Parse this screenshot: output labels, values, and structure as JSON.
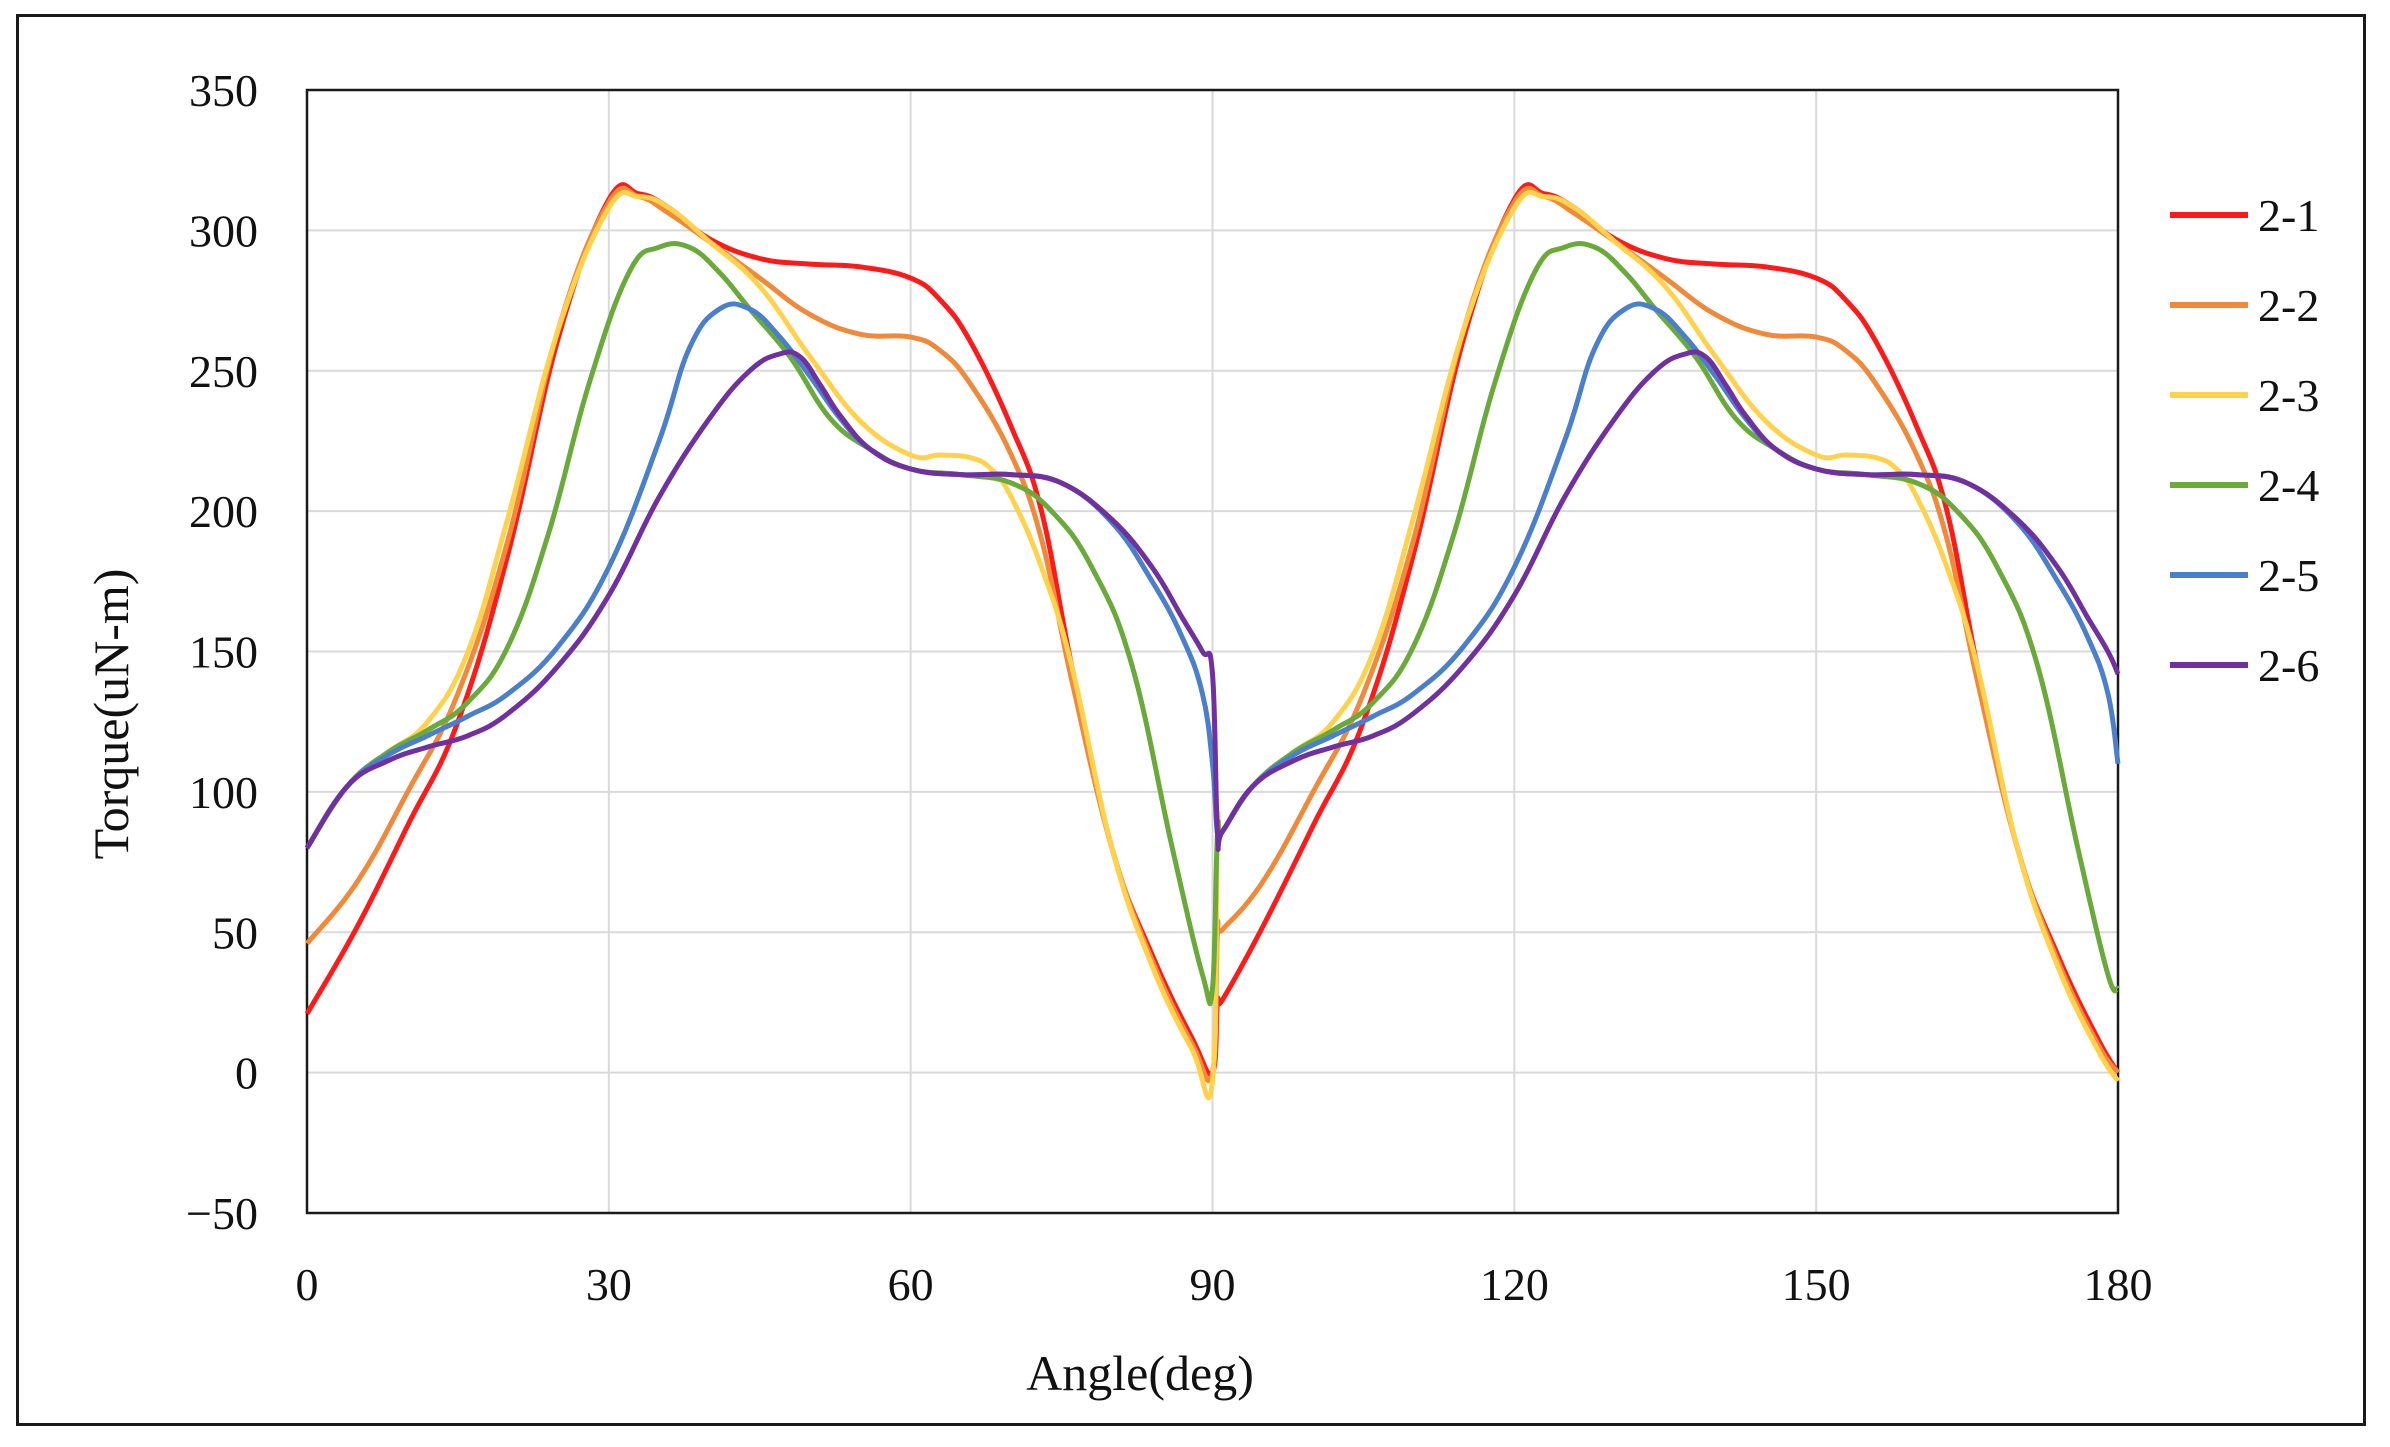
{
  "chart_data": {
    "type": "line",
    "title": "",
    "xlabel": "Angle(deg)",
    "ylabel": "Torque(uN-m)",
    "xlim": [
      0,
      180
    ],
    "ylim": [
      -50,
      350
    ],
    "xticks": [
      0,
      30,
      60,
      90,
      120,
      150,
      180
    ],
    "yticks": [
      -50,
      0,
      50,
      100,
      150,
      200,
      250,
      300,
      350
    ],
    "ytick_labels": [
      "−50",
      "0",
      "50",
      "100",
      "150",
      "200",
      "250",
      "300",
      "350"
    ],
    "grid": true,
    "legend_position": "right",
    "series": [
      {
        "name": "2-1",
        "color": "#ff1a1a",
        "x": [
          0,
          5,
          10,
          15,
          20,
          25,
          30,
          33,
          36,
          40,
          45,
          50,
          55,
          60,
          63,
          66,
          70,
          73,
          76,
          80,
          84,
          88,
          90,
          90.5,
          91,
          95,
          100,
          105,
          110,
          115,
          120,
          123,
          126,
          130,
          135,
          140,
          145,
          150,
          153,
          156,
          160,
          163,
          166,
          170,
          174,
          178,
          180
        ],
        "values": [
          21,
          52,
          88,
          125,
          185,
          262,
          311,
          313,
          308,
          297,
          290,
          288,
          287,
          283,
          275,
          260,
          230,
          200,
          145,
          80,
          42,
          12,
          0,
          25,
          26,
          52,
          88,
          125,
          185,
          262,
          311,
          313,
          308,
          297,
          290,
          288,
          287,
          283,
          275,
          260,
          230,
          200,
          145,
          80,
          42,
          12,
          0
        ]
      },
      {
        "name": "2-2",
        "color": "#f08a3a",
        "x": [
          0,
          5,
          10,
          15,
          20,
          25,
          30,
          33,
          36,
          40,
          45,
          50,
          55,
          60,
          63,
          66,
          70,
          73,
          76,
          80,
          84,
          88,
          90,
          90.5,
          91,
          95,
          100,
          105,
          110,
          115,
          120,
          123,
          126,
          130,
          135,
          140,
          145,
          150,
          153,
          156,
          160,
          163,
          166,
          170,
          174,
          178,
          180
        ],
        "values": [
          46,
          68,
          100,
          135,
          190,
          265,
          310,
          312,
          306,
          296,
          283,
          270,
          263,
          262,
          257,
          245,
          220,
          190,
          140,
          80,
          40,
          10,
          0,
          50,
          51,
          68,
          100,
          135,
          190,
          265,
          310,
          312,
          306,
          296,
          283,
          270,
          263,
          262,
          257,
          245,
          220,
          190,
          140,
          80,
          40,
          10,
          0
        ]
      },
      {
        "name": "2-3",
        "color": "#ffd24d",
        "x": [
          0,
          4,
          8,
          12,
          16,
          20,
          25,
          30,
          33,
          36,
          40,
          45,
          50,
          55,
          60,
          63,
          66,
          68,
          70,
          73,
          76,
          80,
          84,
          88,
          90,
          90.5,
          91,
          94,
          98,
          102,
          106,
          110,
          115,
          120,
          123,
          126,
          130,
          135,
          140,
          145,
          150,
          153,
          156,
          158,
          160,
          163,
          166,
          170,
          174,
          178,
          180
        ],
        "values": [
          80,
          102,
          114,
          125,
          150,
          198,
          265,
          308,
          312,
          308,
          296,
          280,
          255,
          232,
          220,
          220,
          219,
          215,
          205,
          180,
          145,
          80,
          38,
          8,
          -3,
          85,
          86,
          102,
          114,
          125,
          150,
          198,
          265,
          308,
          312,
          308,
          296,
          280,
          255,
          232,
          220,
          220,
          219,
          215,
          205,
          180,
          145,
          80,
          38,
          8,
          -3
        ]
      },
      {
        "name": "2-4",
        "color": "#6aaa3a",
        "x": [
          0,
          4,
          8,
          12,
          16,
          20,
          24,
          28,
          32,
          35,
          38,
          41,
          44,
          48,
          52,
          56,
          60,
          65,
          70,
          74,
          78,
          82,
          86,
          89,
          90,
          90.5,
          91,
          94,
          98,
          102,
          106,
          110,
          114,
          118,
          122,
          125,
          128,
          131,
          134,
          138,
          142,
          146,
          150,
          155,
          160,
          164,
          168,
          172,
          176,
          179,
          180
        ],
        "values": [
          80,
          102,
          114,
          122,
          132,
          152,
          192,
          245,
          285,
          294,
          294,
          285,
          272,
          255,
          233,
          222,
          215,
          213,
          210,
          200,
          180,
          145,
          80,
          35,
          30,
          85,
          86,
          102,
          114,
          122,
          132,
          152,
          192,
          245,
          285,
          294,
          294,
          285,
          272,
          255,
          233,
          222,
          215,
          213,
          210,
          200,
          180,
          145,
          80,
          35,
          30
        ]
      },
      {
        "name": "2-5",
        "color": "#4a7fcc",
        "x": [
          0,
          4,
          8,
          12,
          16,
          20,
          25,
          30,
          35,
          38,
          41,
          44,
          47,
          50,
          53,
          56,
          60,
          65,
          70,
          75,
          80,
          84,
          87,
          89,
          90,
          90.5,
          91,
          94,
          98,
          102,
          106,
          110,
          115,
          120,
          125,
          128,
          131,
          134,
          137,
          140,
          143,
          146,
          150,
          155,
          160,
          165,
          170,
          174,
          177,
          179,
          180
        ],
        "values": [
          80,
          102,
          113,
          120,
          127,
          135,
          152,
          180,
          225,
          258,
          272,
          272,
          262,
          248,
          233,
          222,
          215,
          213,
          213,
          210,
          196,
          175,
          155,
          135,
          110,
          85,
          86,
          102,
          113,
          120,
          127,
          135,
          152,
          180,
          225,
          258,
          272,
          272,
          262,
          248,
          233,
          222,
          215,
          213,
          213,
          210,
          196,
          175,
          155,
          135,
          110
        ]
      },
      {
        "name": "2-6",
        "color": "#7030a0",
        "x": [
          0,
          4,
          8,
          12,
          16,
          20,
          25,
          30,
          35,
          40,
          44,
          47,
          49,
          51,
          53,
          56,
          60,
          65,
          70,
          75,
          80,
          84,
          87,
          89,
          90,
          90.5,
          91,
          94,
          98,
          102,
          106,
          110,
          115,
          120,
          125,
          130,
          134,
          137,
          139,
          141,
          143,
          146,
          150,
          155,
          160,
          165,
          170,
          174,
          177,
          179,
          180
        ],
        "values": [
          80,
          102,
          111,
          116,
          120,
          128,
          145,
          170,
          205,
          233,
          250,
          256,
          255,
          245,
          234,
          222,
          215,
          213,
          213,
          210,
          197,
          180,
          162,
          150,
          142,
          85,
          86,
          102,
          111,
          116,
          120,
          128,
          145,
          170,
          205,
          233,
          250,
          256,
          255,
          245,
          234,
          222,
          215,
          213,
          213,
          210,
          197,
          180,
          162,
          150,
          142
        ]
      }
    ]
  }
}
